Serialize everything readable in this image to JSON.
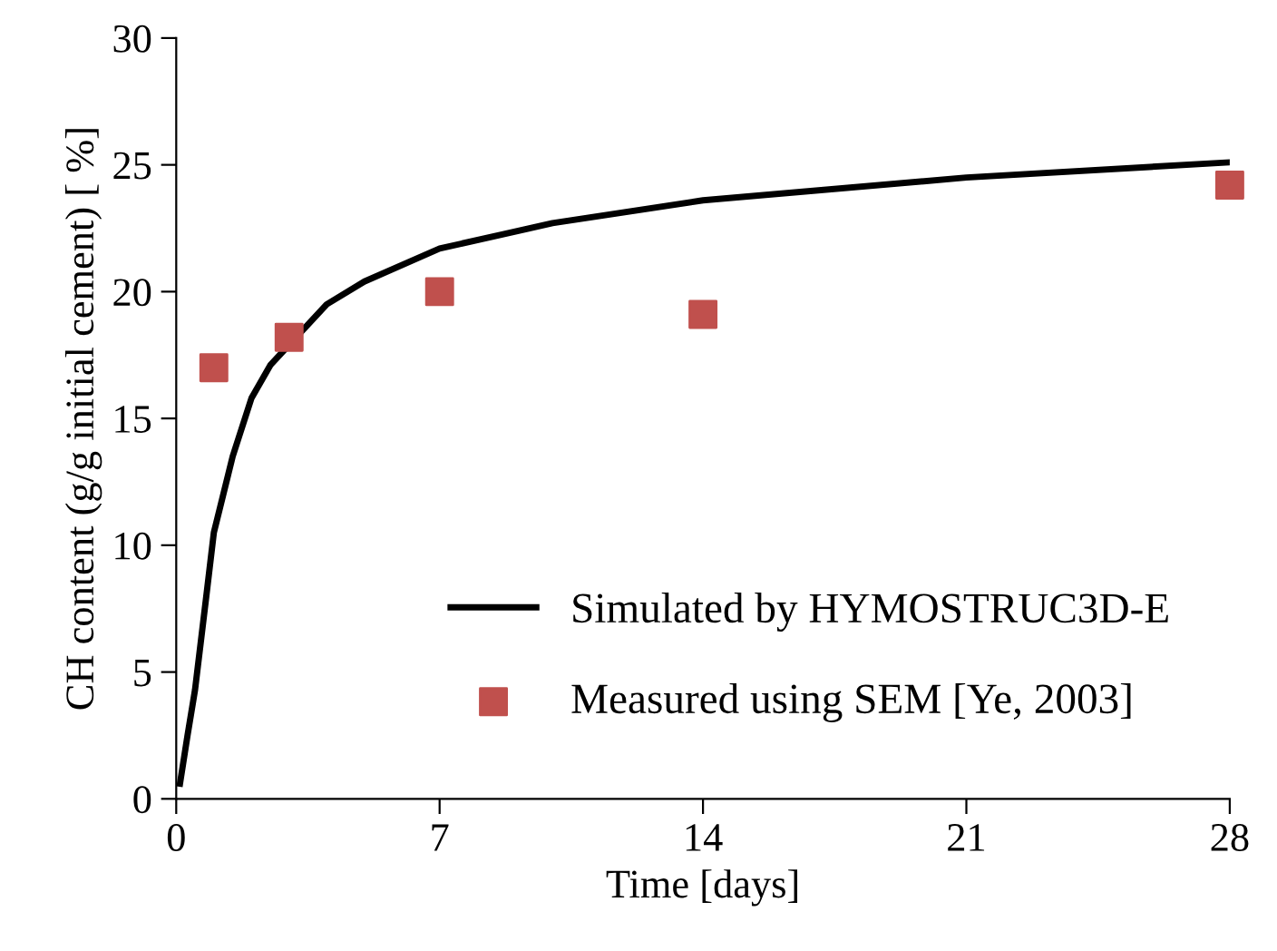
{
  "chart_data": {
    "type": "line",
    "xlabel": "Time [days]",
    "ylabel": "CH content (g/g initial cement) [ %]",
    "xlim": [
      0,
      28
    ],
    "ylim": [
      0,
      30
    ],
    "xticks": [
      0,
      7,
      14,
      21,
      28
    ],
    "yticks": [
      0,
      5,
      10,
      15,
      20,
      25,
      30
    ],
    "grid": false,
    "legend": "bottom right",
    "series": [
      {
        "name": "Simulated by HYMOSTRUC3D-E",
        "color": "#000000",
        "marker": "none",
        "line_style": "solid",
        "x": [
          0.1,
          0.3,
          0.5,
          0.8,
          1,
          1.5,
          2,
          2.5,
          4,
          5,
          7,
          10,
          14,
          21,
          28
        ],
        "values": [
          0.6,
          2.5,
          4.3,
          8,
          10.5,
          13.5,
          15.8,
          17.1,
          19.5,
          20.4,
          21.7,
          22.7,
          23.6,
          24.5,
          25.1
        ]
      },
      {
        "name": "Measured using SEM [Ye, 2003]",
        "type": "scatter",
        "color": "#c0504d",
        "marker": "square",
        "x": [
          1,
          3,
          7,
          14,
          28
        ],
        "values": [
          17,
          18.2,
          20,
          19.1,
          24.2
        ]
      }
    ]
  }
}
